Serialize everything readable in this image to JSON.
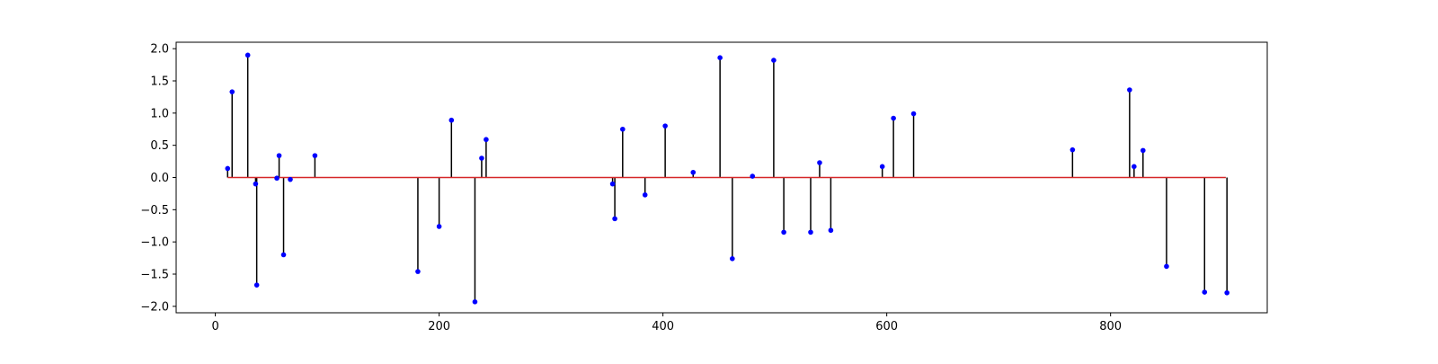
{
  "chart_data": {
    "type": "stem",
    "title": "",
    "xlabel": "",
    "ylabel": "",
    "xlim": [
      -35,
      940
    ],
    "ylim": [
      -2.1,
      2.1
    ],
    "x_ticks": [
      0,
      200,
      400,
      600,
      800
    ],
    "x_tick_labels": [
      "0",
      "200",
      "400",
      "600",
      "800"
    ],
    "y_ticks": [
      2.0,
      1.5,
      1.0,
      0.5,
      0.0,
      -0.5,
      -1.0,
      -1.5,
      -2.0
    ],
    "y_tick_labels": [
      "2.0",
      "1.5",
      "1.0",
      "0.5",
      "0.0",
      "−0.5",
      "−1.0",
      "−1.5",
      "−2.0"
    ],
    "grid": false,
    "baseline": {
      "value": 0.0,
      "x_start": 11,
      "x_end": 903
    },
    "colors": {
      "baseline": "#d62728",
      "stem": "#000000",
      "marker": "#0000ff",
      "axes": "#000000"
    },
    "points": [
      {
        "x": 11,
        "y": 0.14
      },
      {
        "x": 15,
        "y": 1.33
      },
      {
        "x": 29,
        "y": 1.9
      },
      {
        "x": 36,
        "y": -0.1
      },
      {
        "x": 37,
        "y": -1.67
      },
      {
        "x": 55,
        "y": -0.01
      },
      {
        "x": 57,
        "y": 0.34
      },
      {
        "x": 61,
        "y": -1.2
      },
      {
        "x": 67,
        "y": -0.03
      },
      {
        "x": 89,
        "y": 0.34
      },
      {
        "x": 181,
        "y": -1.46
      },
      {
        "x": 200,
        "y": -0.76
      },
      {
        "x": 211,
        "y": 0.89
      },
      {
        "x": 232,
        "y": -1.93
      },
      {
        "x": 238,
        "y": 0.3
      },
      {
        "x": 242,
        "y": 0.59
      },
      {
        "x": 355,
        "y": -0.1
      },
      {
        "x": 357,
        "y": -0.64
      },
      {
        "x": 364,
        "y": 0.75
      },
      {
        "x": 384,
        "y": -0.27
      },
      {
        "x": 402,
        "y": 0.8
      },
      {
        "x": 427,
        "y": 0.08
      },
      {
        "x": 451,
        "y": 1.86
      },
      {
        "x": 462,
        "y": -1.26
      },
      {
        "x": 480,
        "y": 0.02
      },
      {
        "x": 499,
        "y": 1.82
      },
      {
        "x": 508,
        "y": -0.85
      },
      {
        "x": 532,
        "y": -0.85
      },
      {
        "x": 540,
        "y": 0.23
      },
      {
        "x": 550,
        "y": -0.82
      },
      {
        "x": 596,
        "y": 0.17
      },
      {
        "x": 606,
        "y": 0.92
      },
      {
        "x": 624,
        "y": 0.99
      },
      {
        "x": 766,
        "y": 0.43
      },
      {
        "x": 817,
        "y": 1.36
      },
      {
        "x": 821,
        "y": 0.17
      },
      {
        "x": 829,
        "y": 0.42
      },
      {
        "x": 850,
        "y": -1.38
      },
      {
        "x": 884,
        "y": -1.78
      },
      {
        "x": 904,
        "y": -1.79
      }
    ]
  }
}
